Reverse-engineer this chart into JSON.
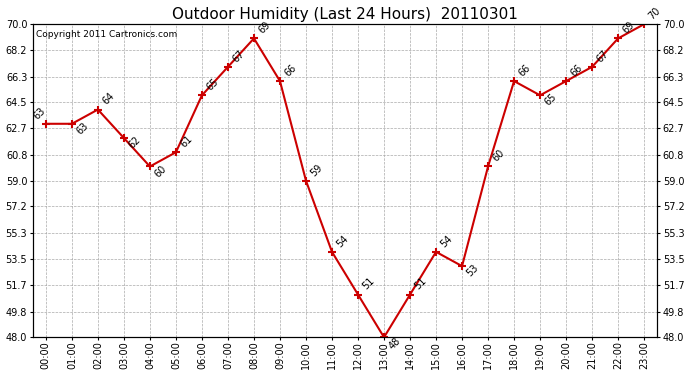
{
  "title": "Outdoor Humidity (Last 24 Hours)  20110301",
  "copyright_text": "Copyright 2011 Cartronics.com",
  "x_labels": [
    "00:00",
    "01:00",
    "02:00",
    "03:00",
    "04:00",
    "05:00",
    "06:00",
    "07:00",
    "08:00",
    "09:00",
    "10:00",
    "11:00",
    "12:00",
    "13:00",
    "14:00",
    "15:00",
    "16:00",
    "17:00",
    "18:00",
    "19:00",
    "20:00",
    "21:00",
    "22:00",
    "23:00"
  ],
  "hours_plot": [
    0,
    1,
    2,
    3,
    4,
    5,
    6,
    7,
    8,
    9,
    10,
    11,
    12,
    13,
    14,
    15,
    16,
    17,
    18,
    19,
    20,
    21,
    22,
    23
  ],
  "values_plot": [
    63,
    63,
    64,
    62,
    60,
    61,
    65,
    67,
    69,
    66,
    59,
    54,
    51,
    48,
    51,
    54,
    53,
    60,
    66,
    65,
    66,
    67,
    69,
    70
  ],
  "ylim": [
    48.0,
    70.0
  ],
  "yticks": [
    48.0,
    49.8,
    51.7,
    53.5,
    55.3,
    57.2,
    59.0,
    60.8,
    62.7,
    64.5,
    66.3,
    68.2,
    70.0
  ],
  "line_color": "#cc0000",
  "bg_color": "#ffffff",
  "plot_bg_color": "#ffffff",
  "grid_color": "#aaaaaa",
  "title_fontsize": 11,
  "copyright_fontsize": 6.5,
  "tick_fontsize": 7,
  "label_fontsize": 7
}
